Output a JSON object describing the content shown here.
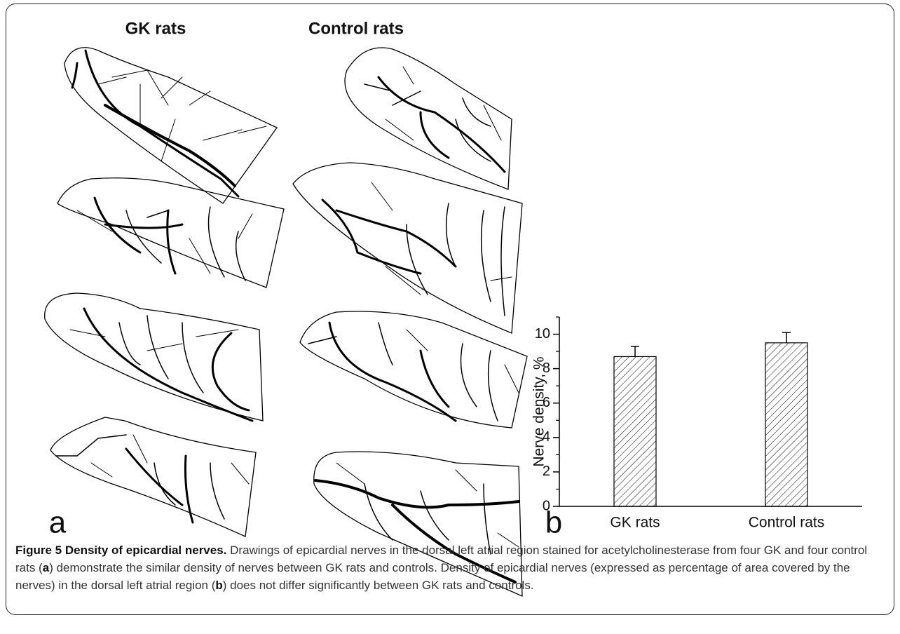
{
  "figure": {
    "column_titles": [
      "GK rats",
      "Control rats"
    ],
    "panel_labels": [
      "a",
      "b"
    ]
  },
  "chart_data": {
    "type": "bar",
    "categories": [
      "GK rats",
      "Control rats"
    ],
    "values": [
      8.7,
      9.5
    ],
    "errors": [
      0.6,
      0.6
    ],
    "color": "#000000",
    "hatch": true,
    "ylabel": "Nerve density, %",
    "ylim": [
      0,
      11
    ],
    "yticks": [
      0,
      2,
      4,
      6,
      8,
      10
    ],
    "minor_yticks": [
      1,
      3,
      5,
      7,
      9,
      11
    ],
    "grid": false
  },
  "caption": {
    "label": "Figure 5",
    "title": "Density of epicardial nerves.",
    "parts": [
      "Drawings of epicardial nerves in the dorsal left atrial region stained for acetylcholinesterase from four GK and four control rats (",
      "a",
      ") demonstrate the similar density of nerves between GK rats and controls. Density of epicardial nerves (expressed as percentage of area covered by the nerves) in the dorsal left atrial region (",
      "b",
      ") does not differ significantly between GK rats and controls."
    ]
  }
}
